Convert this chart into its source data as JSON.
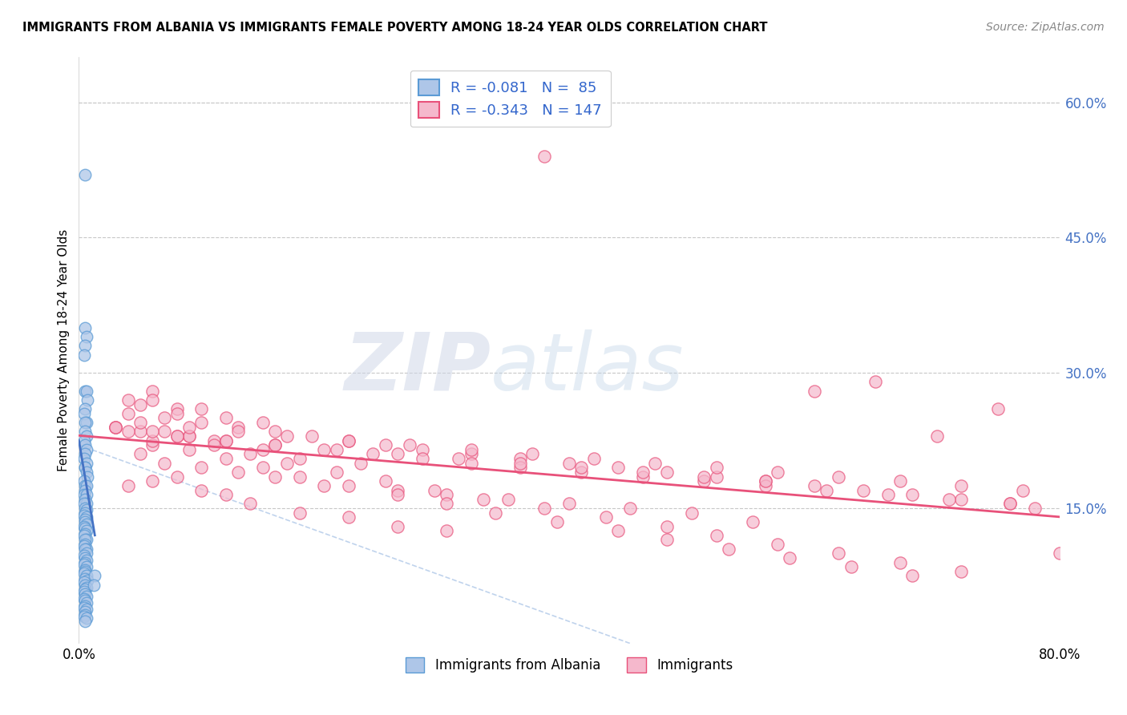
{
  "title": "IMMIGRANTS FROM ALBANIA VS IMMIGRANTS FEMALE POVERTY AMONG 18-24 YEAR OLDS CORRELATION CHART",
  "source": "Source: ZipAtlas.com",
  "ylabel": "Female Poverty Among 18-24 Year Olds",
  "xlim": [
    0.0,
    0.8
  ],
  "ylim": [
    0.0,
    0.65
  ],
  "y_ticks_right": [
    0.15,
    0.3,
    0.45,
    0.6
  ],
  "color_albania": "#aec6e8",
  "color_albania_edge": "#5b9bd5",
  "color_immigrants": "#f5b8cc",
  "color_immigrants_edge": "#e8517a",
  "color_line_albania": "#4472c4",
  "color_line_immigrants": "#e8517a",
  "color_diagonal": "#b0c8e8",
  "background_color": "#ffffff",
  "watermark_zip": "ZIP",
  "watermark_atlas": "atlas",
  "scatter_albania_x": [
    0.005,
    0.005,
    0.006,
    0.005,
    0.004,
    0.005,
    0.006,
    0.007,
    0.005,
    0.004,
    0.006,
    0.005,
    0.005,
    0.006,
    0.004,
    0.005,
    0.006,
    0.005,
    0.004,
    0.006,
    0.005,
    0.005,
    0.006,
    0.007,
    0.004,
    0.005,
    0.006,
    0.005,
    0.004,
    0.006,
    0.005,
    0.006,
    0.004,
    0.005,
    0.006,
    0.005,
    0.004,
    0.006,
    0.005,
    0.005,
    0.006,
    0.004,
    0.005,
    0.006,
    0.005,
    0.004,
    0.006,
    0.005,
    0.005,
    0.004,
    0.006,
    0.005,
    0.006,
    0.004,
    0.005,
    0.006,
    0.005,
    0.004,
    0.006,
    0.005,
    0.005,
    0.004,
    0.006,
    0.005,
    0.007,
    0.004,
    0.005,
    0.006,
    0.005,
    0.004,
    0.005,
    0.006,
    0.004,
    0.005,
    0.006,
    0.005,
    0.004,
    0.006,
    0.005,
    0.005,
    0.004,
    0.006,
    0.005,
    0.013,
    0.012
  ],
  "scatter_albania_y": [
    0.52,
    0.35,
    0.34,
    0.33,
    0.32,
    0.28,
    0.28,
    0.27,
    0.26,
    0.255,
    0.245,
    0.245,
    0.235,
    0.23,
    0.225,
    0.22,
    0.215,
    0.21,
    0.205,
    0.2,
    0.195,
    0.195,
    0.19,
    0.185,
    0.18,
    0.175,
    0.175,
    0.17,
    0.165,
    0.165,
    0.16,
    0.155,
    0.155,
    0.15,
    0.148,
    0.145,
    0.142,
    0.14,
    0.138,
    0.135,
    0.132,
    0.13,
    0.128,
    0.125,
    0.122,
    0.12,
    0.115,
    0.115,
    0.11,
    0.108,
    0.105,
    0.105,
    0.1,
    0.098,
    0.095,
    0.092,
    0.09,
    0.088,
    0.085,
    0.082,
    0.08,
    0.078,
    0.075,
    0.072,
    0.07,
    0.068,
    0.065,
    0.062,
    0.06,
    0.058,
    0.055,
    0.052,
    0.05,
    0.048,
    0.045,
    0.042,
    0.04,
    0.038,
    0.035,
    0.032,
    0.03,
    0.028,
    0.025,
    0.075,
    0.065
  ],
  "scatter_immigrants_x": [
    0.38,
    0.06,
    0.06,
    0.08,
    0.04,
    0.05,
    0.1,
    0.08,
    0.12,
    0.15,
    0.03,
    0.07,
    0.09,
    0.11,
    0.06,
    0.15,
    0.05,
    0.18,
    0.23,
    0.07,
    0.1,
    0.13,
    0.08,
    0.16,
    0.06,
    0.2,
    0.04,
    0.26,
    0.1,
    0.3,
    0.12,
    0.35,
    0.4,
    0.14,
    0.45,
    0.18,
    0.5,
    0.22,
    0.55,
    0.6,
    0.26,
    0.65,
    0.7,
    0.3,
    0.75,
    0.78,
    0.03,
    0.05,
    0.08,
    0.06,
    0.11,
    0.09,
    0.14,
    0.12,
    0.17,
    0.15,
    0.21,
    0.18,
    0.25,
    0.22,
    0.29,
    0.26,
    0.33,
    0.3,
    0.38,
    0.34,
    0.43,
    0.39,
    0.48,
    0.44,
    0.52,
    0.48,
    0.57,
    0.53,
    0.62,
    0.58,
    0.67,
    0.63,
    0.72,
    0.68,
    0.04,
    0.07,
    0.1,
    0.13,
    0.16,
    0.19,
    0.22,
    0.25,
    0.28,
    0.32,
    0.36,
    0.4,
    0.44,
    0.48,
    0.52,
    0.56,
    0.6,
    0.64,
    0.68,
    0.72,
    0.76,
    0.8,
    0.03,
    0.06,
    0.09,
    0.12,
    0.16,
    0.2,
    0.24,
    0.28,
    0.32,
    0.36,
    0.41,
    0.46,
    0.51,
    0.56,
    0.61,
    0.66,
    0.71,
    0.76,
    0.05,
    0.09,
    0.13,
    0.17,
    0.22,
    0.27,
    0.32,
    0.37,
    0.42,
    0.47,
    0.52,
    0.57,
    0.62,
    0.67,
    0.72,
    0.77,
    0.04,
    0.08,
    0.12,
    0.16,
    0.21,
    0.26,
    0.31,
    0.36,
    0.41,
    0.46,
    0.51,
    0.56
  ],
  "scatter_immigrants_y": [
    0.54,
    0.28,
    0.27,
    0.26,
    0.27,
    0.265,
    0.26,
    0.255,
    0.25,
    0.245,
    0.24,
    0.235,
    0.23,
    0.225,
    0.22,
    0.215,
    0.21,
    0.205,
    0.2,
    0.2,
    0.195,
    0.19,
    0.185,
    0.185,
    0.18,
    0.175,
    0.175,
    0.17,
    0.17,
    0.165,
    0.165,
    0.16,
    0.155,
    0.155,
    0.15,
    0.145,
    0.145,
    0.14,
    0.135,
    0.28,
    0.13,
    0.29,
    0.23,
    0.125,
    0.26,
    0.15,
    0.24,
    0.235,
    0.23,
    0.225,
    0.22,
    0.215,
    0.21,
    0.205,
    0.2,
    0.195,
    0.19,
    0.185,
    0.18,
    0.175,
    0.17,
    0.165,
    0.16,
    0.155,
    0.15,
    0.145,
    0.14,
    0.135,
    0.13,
    0.125,
    0.12,
    0.115,
    0.11,
    0.105,
    0.1,
    0.095,
    0.09,
    0.085,
    0.08,
    0.075,
    0.255,
    0.25,
    0.245,
    0.24,
    0.235,
    0.23,
    0.225,
    0.22,
    0.215,
    0.21,
    0.205,
    0.2,
    0.195,
    0.19,
    0.185,
    0.18,
    0.175,
    0.17,
    0.165,
    0.16,
    0.155,
    0.1,
    0.24,
    0.235,
    0.23,
    0.225,
    0.22,
    0.215,
    0.21,
    0.205,
    0.2,
    0.195,
    0.19,
    0.185,
    0.18,
    0.175,
    0.17,
    0.165,
    0.16,
    0.155,
    0.245,
    0.24,
    0.235,
    0.23,
    0.225,
    0.22,
    0.215,
    0.21,
    0.205,
    0.2,
    0.195,
    0.19,
    0.185,
    0.18,
    0.175,
    0.17,
    0.235,
    0.23,
    0.225,
    0.22,
    0.215,
    0.21,
    0.205,
    0.2,
    0.195,
    0.19,
    0.185,
    0.18
  ]
}
